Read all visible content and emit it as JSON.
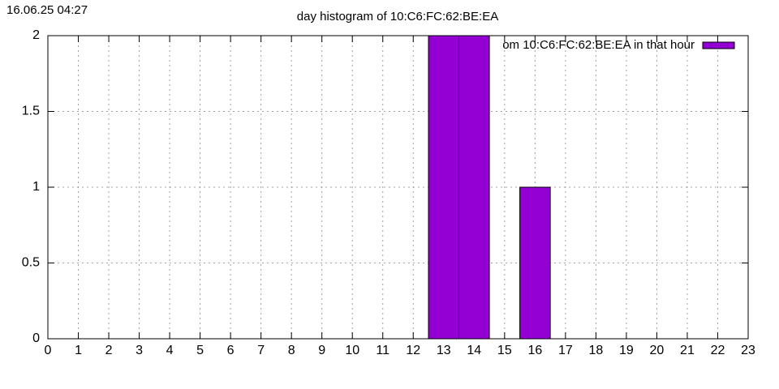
{
  "timestamp": "16.06.25 04:27",
  "chart_data": {
    "type": "bar",
    "title": "day histogram of 10:C6:FC:62:BE:EA",
    "x": [
      13,
      14,
      16
    ],
    "series": [
      {
        "name": "om 10:C6:FC:62:BE:EA in that hour",
        "color": "#9400d3",
        "values": [
          2,
          2,
          1
        ]
      }
    ],
    "xlim": [
      0,
      23
    ],
    "xticks": [
      0,
      1,
      2,
      3,
      4,
      5,
      6,
      7,
      8,
      9,
      10,
      11,
      12,
      13,
      14,
      15,
      16,
      17,
      18,
      19,
      20,
      21,
      22,
      23
    ],
    "ylim": [
      0,
      2
    ],
    "yticks": [
      0,
      0.5,
      1,
      1.5,
      2
    ],
    "grid": true,
    "legend": "top-right"
  }
}
